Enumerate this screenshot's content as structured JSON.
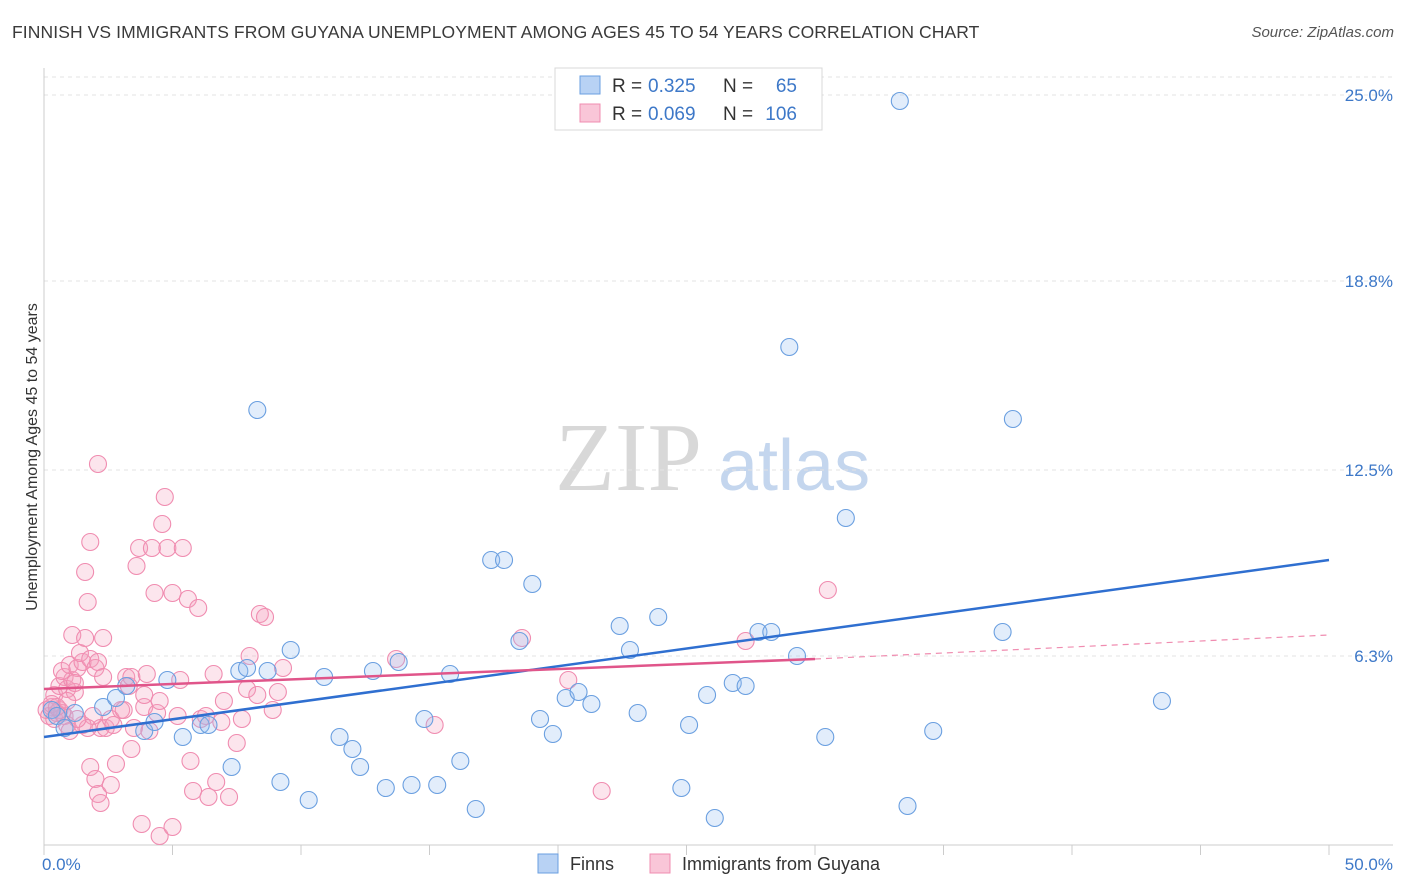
{
  "header": {
    "title": "FINNISH VS IMMIGRANTS FROM GUYANA UNEMPLOYMENT AMONG AGES 45 TO 54 YEARS CORRELATION CHART",
    "source": "Source: ZipAtlas.com"
  },
  "watermark": {
    "zip": "ZIP",
    "atlas": "atlas"
  },
  "legend": {
    "r_label": "R =",
    "n_label": "N =",
    "series": [
      {
        "name": "Finns",
        "r": "0.325",
        "n": "65"
      },
      {
        "name": "Immigrants from Guyana",
        "r": "0.069",
        "n": "106"
      }
    ]
  },
  "chart_data": {
    "type": "scatter",
    "title": "FINNISH VS IMMIGRANTS FROM GUYANA UNEMPLOYMENT AMONG AGES 45 TO 54 YEARS CORRELATION CHART",
    "xlabel": "",
    "ylabel": "Unemployment Among Ages 45 to 54 years",
    "xlim": [
      0,
      50
    ],
    "ylim": [
      0,
      26
    ],
    "x_tick_labels": [
      "0.0%",
      "50.0%"
    ],
    "y_ticks": [
      6.3,
      12.5,
      18.8,
      25.0
    ],
    "y_tick_labels": [
      "6.3%",
      "12.5%",
      "18.8%",
      "25.0%"
    ],
    "grid": true,
    "colors": {
      "finns": "#6a9fe0",
      "finns_line": "#2f6fd0",
      "guyana": "#f08cb0",
      "guyana_line": "#e0558a"
    },
    "series": [
      {
        "name": "Finns",
        "trend": {
          "x0": 0,
          "y0": 3.6,
          "x1": 50,
          "y1": 9.5
        },
        "points": [
          [
            0.3,
            4.5
          ],
          [
            0.5,
            4.3
          ],
          [
            0.8,
            3.9
          ],
          [
            1.2,
            4.4
          ],
          [
            2.3,
            4.6
          ],
          [
            2.8,
            4.9
          ],
          [
            3.2,
            5.3
          ],
          [
            3.9,
            3.8
          ],
          [
            4.3,
            4.1
          ],
          [
            4.8,
            5.5
          ],
          [
            5.4,
            3.6
          ],
          [
            6.1,
            4.0
          ],
          [
            6.4,
            4.0
          ],
          [
            7.3,
            2.6
          ],
          [
            7.6,
            5.8
          ],
          [
            7.9,
            5.9
          ],
          [
            8.3,
            14.5
          ],
          [
            8.7,
            5.8
          ],
          [
            9.2,
            2.1
          ],
          [
            9.6,
            6.5
          ],
          [
            10.3,
            1.5
          ],
          [
            10.9,
            5.6
          ],
          [
            11.5,
            3.6
          ],
          [
            12.0,
            3.2
          ],
          [
            12.3,
            2.6
          ],
          [
            12.8,
            5.8
          ],
          [
            13.3,
            1.9
          ],
          [
            13.8,
            6.1
          ],
          [
            14.3,
            2.0
          ],
          [
            14.8,
            4.2
          ],
          [
            15.3,
            2.0
          ],
          [
            15.8,
            5.7
          ],
          [
            16.2,
            2.8
          ],
          [
            16.8,
            1.2
          ],
          [
            17.4,
            9.5
          ],
          [
            17.9,
            9.5
          ],
          [
            18.5,
            6.8
          ],
          [
            19.0,
            8.7
          ],
          [
            19.3,
            4.2
          ],
          [
            19.8,
            3.7
          ],
          [
            20.3,
            4.9
          ],
          [
            20.8,
            5.1
          ],
          [
            21.3,
            4.7
          ],
          [
            22.4,
            7.3
          ],
          [
            22.8,
            6.5
          ],
          [
            23.1,
            4.4
          ],
          [
            23.9,
            7.6
          ],
          [
            24.8,
            1.9
          ],
          [
            25.1,
            4.0
          ],
          [
            25.8,
            5.0
          ],
          [
            26.1,
            0.9
          ],
          [
            26.8,
            5.4
          ],
          [
            27.3,
            5.3
          ],
          [
            27.8,
            7.1
          ],
          [
            28.3,
            7.1
          ],
          [
            29.0,
            16.6
          ],
          [
            29.3,
            6.3
          ],
          [
            30.4,
            3.6
          ],
          [
            31.2,
            10.9
          ],
          [
            33.3,
            24.8
          ],
          [
            33.6,
            1.3
          ],
          [
            34.6,
            3.8
          ],
          [
            37.3,
            7.1
          ],
          [
            37.7,
            14.2
          ],
          [
            43.5,
            4.8
          ]
        ]
      },
      {
        "name": "Immigrants from Guyana",
        "trend": {
          "x0": 0,
          "y0": 5.2,
          "x1": 30,
          "y1": 6.2,
          "dash_x1": 50,
          "dash_y1": 7.0
        },
        "points": [
          [
            0.1,
            4.5
          ],
          [
            0.2,
            4.3
          ],
          [
            0.3,
            4.6
          ],
          [
            0.4,
            4.2
          ],
          [
            0.5,
            4.4
          ],
          [
            0.6,
            4.5
          ],
          [
            0.7,
            4.4
          ],
          [
            0.8,
            4.3
          ],
          [
            0.9,
            4.0
          ],
          [
            1.0,
            3.8
          ],
          [
            0.4,
            5.0
          ],
          [
            0.6,
            5.3
          ],
          [
            0.8,
            5.6
          ],
          [
            0.9,
            5.2
          ],
          [
            1.1,
            5.5
          ],
          [
            1.2,
            5.1
          ],
          [
            0.7,
            5.8
          ],
          [
            1.0,
            6.0
          ],
          [
            1.3,
            5.9
          ],
          [
            1.5,
            6.1
          ],
          [
            1.1,
            7.0
          ],
          [
            1.4,
            6.4
          ],
          [
            1.6,
            6.9
          ],
          [
            1.8,
            6.2
          ],
          [
            2.0,
            5.9
          ],
          [
            2.1,
            6.1
          ],
          [
            2.3,
            5.6
          ],
          [
            1.9,
            4.3
          ],
          [
            2.2,
            3.9
          ],
          [
            2.4,
            3.9
          ],
          [
            2.6,
            4.2
          ],
          [
            1.5,
            4.0
          ],
          [
            1.7,
            3.9
          ],
          [
            1.8,
            2.6
          ],
          [
            2.0,
            2.2
          ],
          [
            2.1,
            1.7
          ],
          [
            2.2,
            1.4
          ],
          [
            1.6,
            9.1
          ],
          [
            1.7,
            8.1
          ],
          [
            1.8,
            10.1
          ],
          [
            2.1,
            12.7
          ],
          [
            2.3,
            6.9
          ],
          [
            2.6,
            2.0
          ],
          [
            2.8,
            2.7
          ],
          [
            3.0,
            4.5
          ],
          [
            3.1,
            4.5
          ],
          [
            3.2,
            5.6
          ],
          [
            3.3,
            5.3
          ],
          [
            3.4,
            5.6
          ],
          [
            3.4,
            3.2
          ],
          [
            3.5,
            3.9
          ],
          [
            3.6,
            9.3
          ],
          [
            3.7,
            9.9
          ],
          [
            3.8,
            0.7
          ],
          [
            3.9,
            4.6
          ],
          [
            3.9,
            5.0
          ],
          [
            4.0,
            5.7
          ],
          [
            4.1,
            3.8
          ],
          [
            4.2,
            9.9
          ],
          [
            4.3,
            8.4
          ],
          [
            4.4,
            4.4
          ],
          [
            4.5,
            4.8
          ],
          [
            4.6,
            10.7
          ],
          [
            4.7,
            11.6
          ],
          [
            4.8,
            9.9
          ],
          [
            5.0,
            8.4
          ],
          [
            5.2,
            4.3
          ],
          [
            5.4,
            9.9
          ],
          [
            5.6,
            8.2
          ],
          [
            5.7,
            2.8
          ],
          [
            5.8,
            1.8
          ],
          [
            6.0,
            7.9
          ],
          [
            6.1,
            4.2
          ],
          [
            6.3,
            4.3
          ],
          [
            6.4,
            1.6
          ],
          [
            6.6,
            5.7
          ],
          [
            6.7,
            2.1
          ],
          [
            6.9,
            4.1
          ],
          [
            7.0,
            4.8
          ],
          [
            7.2,
            1.6
          ],
          [
            7.5,
            3.4
          ],
          [
            7.7,
            4.2
          ],
          [
            7.9,
            5.2
          ],
          [
            8.0,
            6.3
          ],
          [
            8.3,
            5.0
          ],
          [
            8.4,
            7.7
          ],
          [
            8.6,
            7.6
          ],
          [
            8.9,
            4.5
          ],
          [
            9.1,
            5.1
          ],
          [
            9.3,
            5.9
          ],
          [
            1.2,
            5.4
          ],
          [
            2.7,
            4.0
          ],
          [
            4.5,
            0.3
          ],
          [
            5.0,
            0.6
          ],
          [
            5.3,
            5.5
          ],
          [
            13.7,
            6.2
          ],
          [
            15.2,
            4.0
          ],
          [
            18.6,
            6.9
          ],
          [
            20.4,
            5.5
          ],
          [
            21.7,
            1.8
          ],
          [
            27.3,
            6.8
          ],
          [
            30.5,
            8.5
          ],
          [
            0.3,
            4.7
          ],
          [
            0.5,
            4.6
          ],
          [
            0.9,
            4.8
          ],
          [
            1.3,
            4.2
          ]
        ]
      }
    ]
  }
}
